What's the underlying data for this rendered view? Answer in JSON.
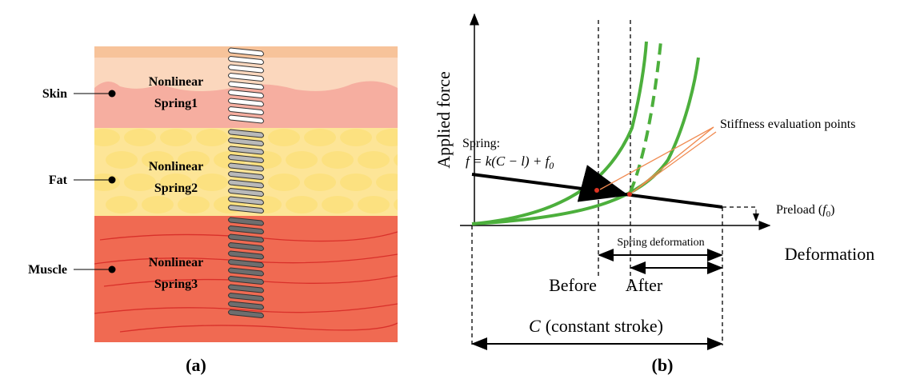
{
  "panel_a": {
    "layers": [
      {
        "label": "Skin",
        "spring": [
          "Nonlinear",
          "Spring1"
        ]
      },
      {
        "label": "Fat",
        "spring": [
          "Nonlinear",
          "Spring2"
        ]
      },
      {
        "label": "Muscle",
        "spring": [
          "Nonlinear",
          "Spring3"
        ]
      }
    ],
    "caption": "(a)"
  },
  "panel_b": {
    "y_axis_label": "Applied force",
    "x_axis_label": "Deformation",
    "spring_label": "Spring:",
    "spring_formula": {
      "text": "f = k(C − l) + f",
      "subscript": "0"
    },
    "annotation": "Stiffness evaluation points",
    "preload": {
      "text": "Preload (",
      "variable": "f",
      "subscript": "0",
      "close": ")"
    },
    "spring_deformation": "Spring deformation",
    "before": "Before",
    "after": "After",
    "stroke": {
      "variable": "C",
      "text": "(constant stroke)"
    },
    "caption": "(b)"
  }
}
